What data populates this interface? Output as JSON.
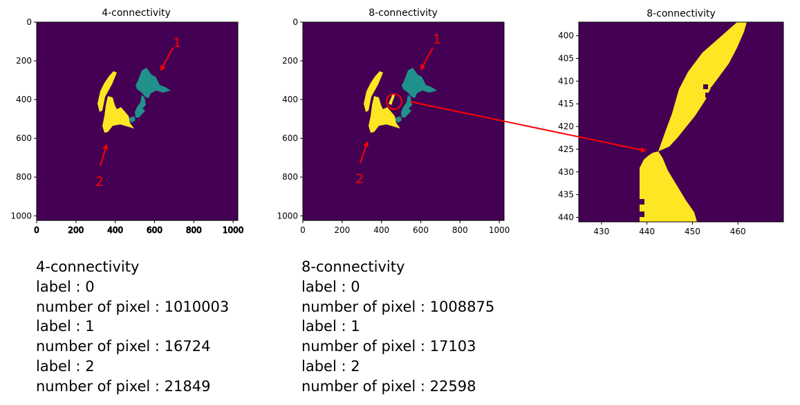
{
  "chart_data": [
    {
      "type": "heatmap",
      "title": "4-connectivity",
      "xlim": [
        0,
        1024
      ],
      "ylim": [
        1024,
        0
      ],
      "x_ticks": [
        "0",
        "200",
        "400",
        "600",
        "800",
        "1000"
      ],
      "y_ticks": [
        "0",
        "200",
        "400",
        "600",
        "800",
        "1000"
      ],
      "regions": [
        {
          "label": 1,
          "name": "1",
          "color": "#21918c",
          "pixels": 16724
        },
        {
          "label": 2,
          "name": "2",
          "color": "#fde725",
          "pixels": 21849
        }
      ],
      "annotations": [
        "1",
        "2"
      ]
    },
    {
      "type": "heatmap",
      "title": "8-connectivity",
      "xlim": [
        0,
        1024
      ],
      "ylim": [
        1024,
        0
      ],
      "x_ticks": [
        "0",
        "200",
        "400",
        "600",
        "800",
        "1000"
      ],
      "y_ticks": [
        "0",
        "200",
        "400",
        "600",
        "800",
        "1000"
      ],
      "regions": [
        {
          "label": 1,
          "name": "1",
          "color": "#21918c",
          "pixels": 17103
        },
        {
          "label": 2,
          "name": "2",
          "color": "#fde725",
          "pixels": 22598
        }
      ],
      "annotations": [
        "1",
        "2"
      ]
    },
    {
      "type": "heatmap",
      "title": "8-connectivity",
      "xlim": [
        425,
        470
      ],
      "ylim": [
        441,
        397
      ],
      "x_ticks": [
        "430",
        "440",
        "450",
        "460"
      ],
      "y_ticks": [
        "400",
        "405",
        "410",
        "415",
        "420",
        "425",
        "430",
        "435",
        "440"
      ],
      "colors": {
        "background": "#440154",
        "foreground": "#fde725"
      }
    }
  ],
  "stats": {
    "left": {
      "title": "4-connectivity",
      "lines": [
        "label : 0",
        "number of pixel : 1010003",
        "label : 1",
        "number of pixel : 16724",
        "label : 2",
        "number of pixel : 21849"
      ]
    },
    "right": {
      "title": "8-connectivity",
      "lines": [
        "label : 0",
        "number of pixel : 1008875",
        "label : 1",
        "number of pixel : 17103",
        "label : 2",
        "number of pixel : 22598"
      ]
    }
  },
  "colors": {
    "background": "#440154",
    "region1": "#21918c",
    "region2": "#fde725",
    "annotation": "#ff0000"
  }
}
